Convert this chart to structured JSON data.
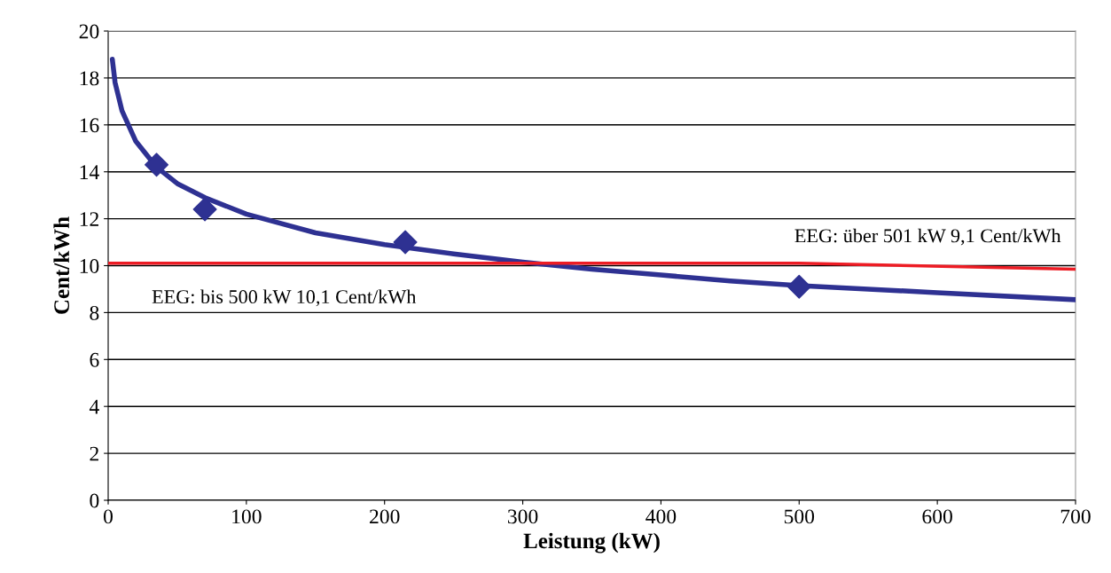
{
  "chart_data": {
    "type": "line",
    "xlabel": "Leistung (kW)",
    "ylabel": "Cent/kWh",
    "xlim": [
      0,
      700
    ],
    "xticks": [
      0,
      100,
      200,
      300,
      400,
      500,
      600,
      700
    ],
    "ylim": [
      0,
      20
    ],
    "yticks": [
      0,
      2,
      4,
      6,
      8,
      10,
      12,
      14,
      16,
      18,
      20
    ],
    "grid": "y",
    "legend": false,
    "series": [
      {
        "color": "#2e3192",
        "marker": "none",
        "x": [
          3,
          5,
          10,
          20,
          35,
          50,
          70,
          100,
          150,
          200,
          250,
          300,
          350,
          400,
          450,
          500,
          600,
          700
        ],
        "values": [
          18.8,
          17.8,
          16.6,
          15.3,
          14.2,
          13.5,
          12.9,
          12.2,
          11.4,
          10.9,
          10.5,
          10.15,
          9.85,
          9.6,
          9.35,
          9.15,
          8.85,
          8.55
        ]
      },
      {
        "color": "#ed1c24",
        "marker": "none",
        "x": [
          0,
          500,
          700
        ],
        "values": [
          10.1,
          10.1,
          9.85
        ]
      },
      {
        "type": "scatter",
        "color": "#2e3192",
        "marker": "diamond",
        "x": [
          35,
          70,
          215,
          500
        ],
        "values": [
          14.3,
          12.4,
          11.0,
          9.1
        ]
      }
    ],
    "annotations": [
      "EEG: bis 500 kW 10,1 Cent/kWh",
      "EEG: über 501 kW 9,1 Cent/kWh"
    ]
  }
}
